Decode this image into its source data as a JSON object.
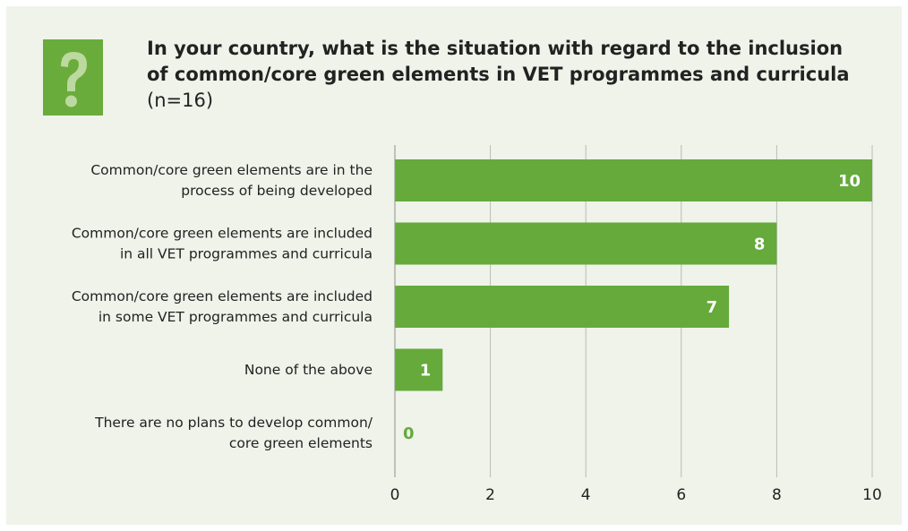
{
  "header": {
    "icon": "question-mark-icon",
    "title_bold": "In your country, what is the situation with regard to the inclusion of common/core green elements in VET programmes and curricula",
    "title_note": "(n=16)"
  },
  "colors": {
    "panel": "#eff3ea",
    "bar": "#65aa3b",
    "grid": "#b9bcb6",
    "text": "#222222",
    "value_label_inside": "#ffffff",
    "value_label_outside": "#65aa3b"
  },
  "chart_data": {
    "type": "bar",
    "orientation": "horizontal",
    "categories": [
      [
        "Common/core green elements are in the",
        "process of being developed"
      ],
      [
        "Common/core green elements are included",
        "in all VET programmes and curricula"
      ],
      [
        "Common/core green elements are included",
        "in some VET programmes and curricula"
      ],
      [
        "None of the above"
      ],
      [
        "There are no plans to develop common/",
        "core green elements"
      ]
    ],
    "values": [
      10,
      8,
      7,
      1,
      0
    ],
    "value_labels": [
      "10",
      "8",
      "7",
      "1",
      "0"
    ],
    "xlim": [
      0,
      10
    ],
    "xticks": [
      0,
      2,
      4,
      6,
      8,
      10
    ],
    "grid": true
  }
}
